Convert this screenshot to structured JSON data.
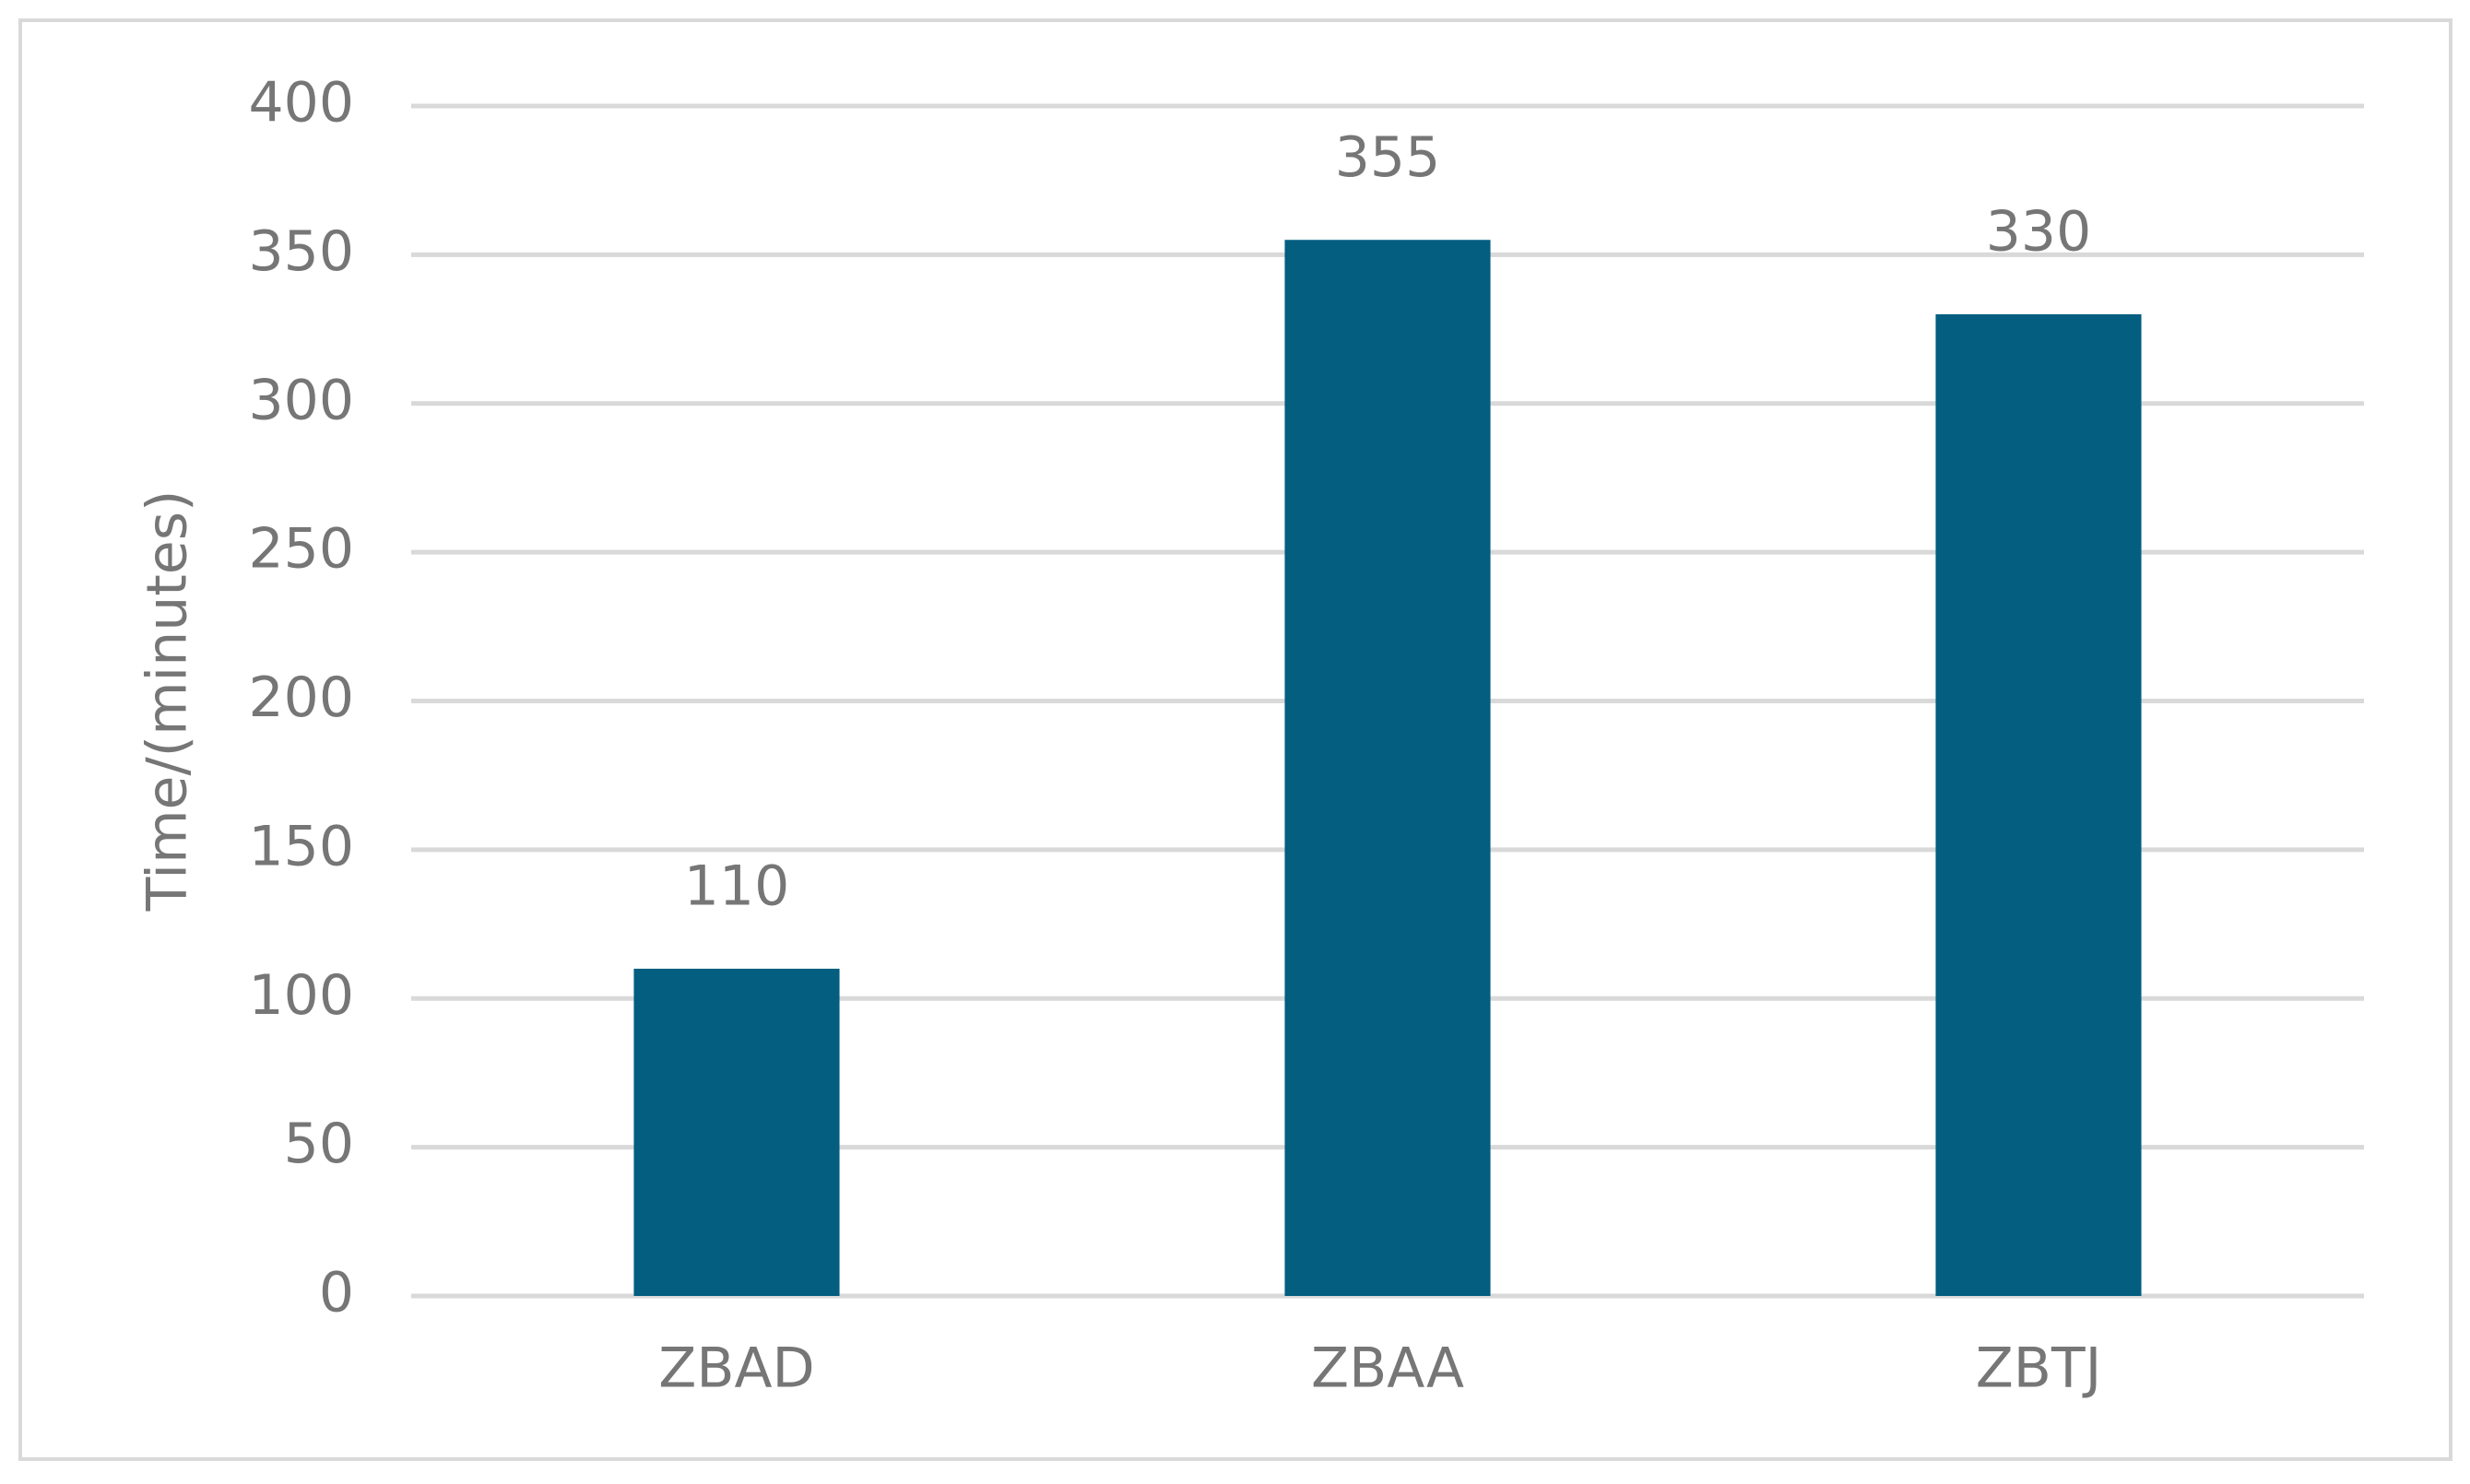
{
  "chart_data": {
    "type": "bar",
    "y_label": "Time/(minutes)",
    "categories": [
      "ZBAD",
      "ZBAA",
      "ZBTJ"
    ],
    "values": [
      110,
      355,
      330
    ],
    "color": "#035e80",
    "ylim": [
      0,
      400
    ],
    "yticks": [
      0,
      50,
      100,
      150,
      200,
      250,
      300,
      350,
      400
    ],
    "grid": true,
    "data_labels": true
  }
}
